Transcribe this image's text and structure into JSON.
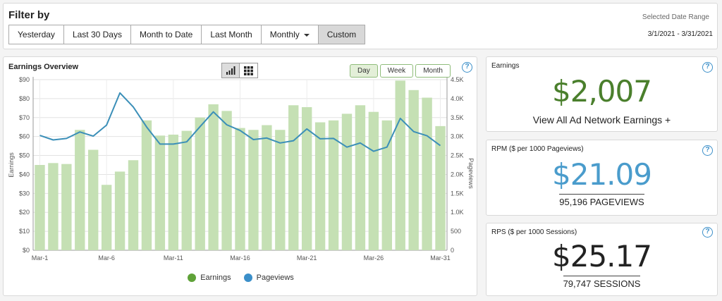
{
  "filter": {
    "title": "Filter by",
    "buttons": [
      {
        "label": "Yesterday",
        "active": false
      },
      {
        "label": "Last 30 Days",
        "active": false
      },
      {
        "label": "Month to Date",
        "active": false
      },
      {
        "label": "Last Month",
        "active": false
      },
      {
        "label": "Monthly",
        "active": false,
        "dropdown": true
      },
      {
        "label": "Custom",
        "active": true
      }
    ],
    "range_label": "Selected Date Range",
    "range_value": "3/1/2021 - 3/31/2021"
  },
  "overview": {
    "title": "Earnings Overview",
    "view_toggle": [
      "bar-chart-icon",
      "grid-icon"
    ],
    "period_tabs": [
      {
        "label": "Day",
        "active": true
      },
      {
        "label": "Week",
        "active": false
      },
      {
        "label": "Month",
        "active": false
      }
    ],
    "help": "?"
  },
  "colors": {
    "bar": "#c5e0b4",
    "line": "#3b8fb8",
    "earnings_dot": "#5fa238",
    "pageviews_dot": "#3b8fc9",
    "green_value": "#4a7f2c",
    "blue_value": "#4a9ccc",
    "dark_value": "#222222"
  },
  "chart_data": {
    "type": "bar",
    "x": [
      "Mar-1",
      "Mar-2",
      "Mar-3",
      "Mar-4",
      "Mar-5",
      "Mar-6",
      "Mar-7",
      "Mar-8",
      "Mar-9",
      "Mar-10",
      "Mar-11",
      "Mar-12",
      "Mar-13",
      "Mar-14",
      "Mar-15",
      "Mar-16",
      "Mar-17",
      "Mar-18",
      "Mar-19",
      "Mar-20",
      "Mar-21",
      "Mar-22",
      "Mar-23",
      "Mar-24",
      "Mar-25",
      "Mar-26",
      "Mar-27",
      "Mar-28",
      "Mar-29",
      "Mar-30",
      "Mar-31"
    ],
    "x_tick_labels": [
      "Mar-1",
      "Mar-6",
      "Mar-11",
      "Mar-16",
      "Mar-21",
      "Mar-26",
      "Mar-31"
    ],
    "series": [
      {
        "name": "Earnings",
        "type": "bar",
        "axis": "left",
        "values": [
          45,
          46,
          45.5,
          63.5,
          53,
          34.5,
          41.5,
          47.5,
          68.5,
          60.5,
          61,
          63,
          70,
          77,
          73.5,
          64.5,
          63.5,
          66,
          63.5,
          76.5,
          75.5,
          67.5,
          68.5,
          72,
          76.5,
          73,
          68.5,
          89.5,
          84.5,
          80.5,
          65.5
        ]
      },
      {
        "name": "Pageviews",
        "type": "line",
        "axis": "right",
        "values": [
          3030,
          2910,
          2950,
          3120,
          3010,
          3300,
          4150,
          3780,
          3250,
          2800,
          2800,
          2860,
          3260,
          3650,
          3310,
          3160,
          2920,
          2960,
          2830,
          2890,
          3200,
          2940,
          2950,
          2720,
          2830,
          2610,
          2720,
          3480,
          3130,
          3020,
          2760
        ]
      }
    ],
    "y_left": {
      "label": "Earnings",
      "range": [
        0,
        90
      ],
      "ticks": [
        "$0",
        "$10",
        "$20",
        "$30",
        "$40",
        "$50",
        "$60",
        "$70",
        "$80",
        "$90"
      ]
    },
    "y_right": {
      "label": "Pageviews",
      "range": [
        0,
        4500
      ],
      "ticks": [
        "0",
        "500",
        "1.0K",
        "1.5K",
        "2.0K",
        "2.5K",
        "3.0K",
        "3.5K",
        "4.0K",
        "4.5K"
      ]
    },
    "grid": true,
    "legend": {
      "placement": "bottom",
      "entries": [
        "Earnings",
        "Pageviews"
      ]
    }
  },
  "cards": {
    "earnings": {
      "label": "Earnings",
      "value": "$2,007",
      "sub": "View All Ad Network Earnings +"
    },
    "rpm": {
      "label": "RPM ($ per 1000 Pageviews)",
      "value": "$21.09",
      "sub": "95,196 PAGEVIEWS"
    },
    "rps": {
      "label": "RPS ($ per 1000 Sessions)",
      "value": "$25.17",
      "sub": "79,747 SESSIONS"
    }
  }
}
